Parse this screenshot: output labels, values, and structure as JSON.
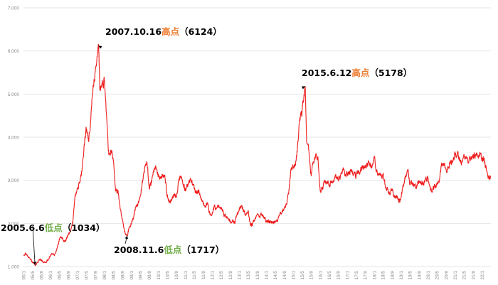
{
  "chart_data": {
    "type": "line",
    "title": "",
    "xlabel": "",
    "ylabel": "",
    "ylim": [
      1000,
      7000
    ],
    "yticks": [
      "1,000",
      "2,000",
      "3,000",
      "4,000",
      "5,000",
      "6,000",
      "7,000"
    ],
    "grid": "horizontal",
    "legend": "none",
    "line_color": "#ee1c1c",
    "x_tick_labels": [
      "05/1",
      "05/5",
      "05/9",
      "06/1",
      "06/5",
      "06/9",
      "07/1",
      "07/5",
      "07/9",
      "08/1",
      "08/5",
      "08/9",
      "09/1",
      "09/5",
      "09/9",
      "10/1",
      "10/5",
      "10/9",
      "11/1",
      "11/5",
      "11/9",
      "12/1",
      "12/5",
      "12/9",
      "13/1",
      "13/5",
      "13/9",
      "14/1",
      "14/5",
      "14/9",
      "15/1",
      "15/5",
      "15/9",
      "16/1",
      "16/5",
      "16/9",
      "17/1",
      "17/5",
      "17/9",
      "18/1",
      "18/5",
      "18/9",
      "19/1",
      "19/5",
      "19/9",
      "20/1",
      "20/5",
      "20/9",
      "21/1",
      "21/5",
      "21/9",
      "22/1"
    ],
    "series": [
      {
        "values": [
          [
            "2005-01-01",
            1260
          ],
          [
            "2005-02-01",
            1300
          ],
          [
            "2005-03-01",
            1230
          ],
          [
            "2005-04-01",
            1180
          ],
          [
            "2005-05-01",
            1100
          ],
          [
            "2005-06-06",
            1034
          ],
          [
            "2005-07-01",
            1080
          ],
          [
            "2005-08-01",
            1160
          ],
          [
            "2005-09-01",
            1150
          ],
          [
            "2005-10-01",
            1100
          ],
          [
            "2005-11-01",
            1090
          ],
          [
            "2005-12-01",
            1160
          ],
          [
            "2006-01-01",
            1250
          ],
          [
            "2006-02-01",
            1300
          ],
          [
            "2006-03-01",
            1290
          ],
          [
            "2006-04-01",
            1420
          ],
          [
            "2006-05-01",
            1640
          ],
          [
            "2006-06-01",
            1660
          ],
          [
            "2006-07-01",
            1580
          ],
          [
            "2006-08-01",
            1620
          ],
          [
            "2006-09-01",
            1750
          ],
          [
            "2006-10-01",
            1850
          ],
          [
            "2006-11-01",
            2050
          ],
          [
            "2006-12-01",
            2650
          ],
          [
            "2007-01-01",
            2800
          ],
          [
            "2007-02-01",
            2950
          ],
          [
            "2007-03-01",
            3200
          ],
          [
            "2007-04-01",
            3800
          ],
          [
            "2007-05-01",
            4200
          ],
          [
            "2007-06-01",
            3900
          ],
          [
            "2007-07-01",
            4400
          ],
          [
            "2007-08-01",
            5200
          ],
          [
            "2007-09-01",
            5550
          ],
          [
            "2007-10-16",
            6124
          ],
          [
            "2007-11-01",
            5100
          ],
          [
            "2007-12-01",
            5260
          ],
          [
            "2008-01-01",
            5300
          ],
          [
            "2008-02-01",
            4450
          ],
          [
            "2008-03-01",
            3600
          ],
          [
            "2008-04-01",
            3700
          ],
          [
            "2008-05-01",
            3450
          ],
          [
            "2008-06-01",
            2750
          ],
          [
            "2008-07-01",
            2780
          ],
          [
            "2008-08-01",
            2350
          ],
          [
            "2008-09-01",
            2100
          ],
          [
            "2008-10-01",
            1800
          ],
          [
            "2008-11-06",
            1717
          ],
          [
            "2008-12-01",
            1900
          ],
          [
            "2009-01-01",
            1990
          ],
          [
            "2009-02-01",
            2150
          ],
          [
            "2009-03-01",
            2380
          ],
          [
            "2009-04-01",
            2450
          ],
          [
            "2009-05-01",
            2640
          ],
          [
            "2009-06-01",
            2950
          ],
          [
            "2009-07-01",
            3300
          ],
          [
            "2009-08-01",
            3400
          ],
          [
            "2009-09-01",
            2800
          ],
          [
            "2009-10-01",
            2950
          ],
          [
            "2009-11-01",
            3200
          ],
          [
            "2009-12-01",
            3280
          ],
          [
            "2010-01-01",
            3100
          ],
          [
            "2010-02-01",
            3050
          ],
          [
            "2010-03-01",
            3100
          ],
          [
            "2010-04-01",
            3050
          ],
          [
            "2010-05-01",
            2650
          ],
          [
            "2010-06-01",
            2500
          ],
          [
            "2010-07-01",
            2550
          ],
          [
            "2010-08-01",
            2650
          ],
          [
            "2010-09-01",
            2600
          ],
          [
            "2010-10-01",
            2950
          ],
          [
            "2010-11-01",
            3100
          ],
          [
            "2010-12-01",
            2900
          ],
          [
            "2011-01-01",
            2800
          ],
          [
            "2011-02-01",
            2850
          ],
          [
            "2011-03-01",
            2950
          ],
          [
            "2011-04-01",
            3000
          ],
          [
            "2011-05-01",
            2800
          ],
          [
            "2011-06-01",
            2700
          ],
          [
            "2011-07-01",
            2780
          ],
          [
            "2011-08-01",
            2600
          ],
          [
            "2011-09-01",
            2450
          ],
          [
            "2011-10-01",
            2400
          ],
          [
            "2011-11-01",
            2450
          ],
          [
            "2011-12-01",
            2200
          ],
          [
            "2012-01-01",
            2250
          ],
          [
            "2012-02-01",
            2400
          ],
          [
            "2012-03-01",
            2350
          ],
          [
            "2012-04-01",
            2400
          ],
          [
            "2012-05-01",
            2350
          ],
          [
            "2012-06-01",
            2250
          ],
          [
            "2012-07-01",
            2150
          ],
          [
            "2012-08-01",
            2100
          ],
          [
            "2012-09-01",
            2050
          ],
          [
            "2012-10-01",
            2080
          ],
          [
            "2012-11-01",
            2000
          ],
          [
            "2012-12-01",
            2200
          ],
          [
            "2013-01-01",
            2350
          ],
          [
            "2013-02-01",
            2420
          ],
          [
            "2013-03-01",
            2300
          ],
          [
            "2013-04-01",
            2200
          ],
          [
            "2013-05-01",
            2300
          ],
          [
            "2013-06-01",
            1950
          ],
          [
            "2013-07-01",
            2000
          ],
          [
            "2013-08-01",
            2100
          ],
          [
            "2013-09-01",
            2200
          ],
          [
            "2013-10-01",
            2150
          ],
          [
            "2013-11-01",
            2200
          ],
          [
            "2013-12-01",
            2150
          ],
          [
            "2014-01-01",
            2050
          ],
          [
            "2014-02-01",
            2050
          ],
          [
            "2014-03-01",
            2040
          ],
          [
            "2014-04-01",
            2030
          ],
          [
            "2014-05-01",
            2030
          ],
          [
            "2014-06-01",
            2050
          ],
          [
            "2014-07-01",
            2200
          ],
          [
            "2014-08-01",
            2250
          ],
          [
            "2014-09-01",
            2350
          ],
          [
            "2014-10-01",
            2450
          ],
          [
            "2014-11-01",
            2700
          ],
          [
            "2014-12-01",
            3250
          ],
          [
            "2015-01-01",
            3300
          ],
          [
            "2015-02-01",
            3350
          ],
          [
            "2015-03-01",
            3800
          ],
          [
            "2015-04-01",
            4450
          ],
          [
            "2015-05-01",
            4600
          ],
          [
            "2015-06-12",
            5178
          ],
          [
            "2015-07-01",
            3900
          ],
          [
            "2015-08-01",
            3700
          ],
          [
            "2015-09-01",
            3100
          ],
          [
            "2015-10-01",
            3400
          ],
          [
            "2015-11-01",
            3600
          ],
          [
            "2015-12-01",
            3550
          ],
          [
            "2016-01-01",
            2750
          ],
          [
            "2016-02-01",
            2800
          ],
          [
            "2016-03-01",
            3000
          ],
          [
            "2016-04-01",
            2950
          ],
          [
            "2016-05-01",
            2900
          ],
          [
            "2016-06-01",
            2950
          ],
          [
            "2016-07-01",
            3000
          ],
          [
            "2016-08-01",
            3100
          ],
          [
            "2016-09-01",
            3000
          ],
          [
            "2016-10-01",
            3100
          ],
          [
            "2016-11-01",
            3250
          ],
          [
            "2016-12-01",
            3100
          ],
          [
            "2017-01-01",
            3150
          ],
          [
            "2017-02-01",
            3200
          ],
          [
            "2017-03-01",
            3250
          ],
          [
            "2017-04-01",
            3150
          ],
          [
            "2017-05-01",
            3100
          ],
          [
            "2017-06-01",
            3200
          ],
          [
            "2017-07-01",
            3250
          ],
          [
            "2017-08-01",
            3300
          ],
          [
            "2017-09-01",
            3350
          ],
          [
            "2017-10-01",
            3400
          ],
          [
            "2017-11-01",
            3350
          ],
          [
            "2017-12-01",
            3300
          ],
          [
            "2018-01-01",
            3550
          ],
          [
            "2018-02-01",
            3200
          ],
          [
            "2018-03-01",
            3150
          ],
          [
            "2018-04-01",
            3100
          ],
          [
            "2018-05-01",
            3150
          ],
          [
            "2018-06-01",
            2850
          ],
          [
            "2018-07-01",
            2800
          ],
          [
            "2018-08-01",
            2700
          ],
          [
            "2018-09-01",
            2800
          ],
          [
            "2018-10-01",
            2600
          ],
          [
            "2018-11-01",
            2650
          ],
          [
            "2018-12-01",
            2500
          ],
          [
            "2019-01-01",
            2600
          ],
          [
            "2019-02-01",
            2900
          ],
          [
            "2019-03-01",
            3100
          ],
          [
            "2019-04-01",
            3250
          ],
          [
            "2019-05-01",
            2900
          ],
          [
            "2019-06-01",
            2950
          ],
          [
            "2019-07-01",
            2900
          ],
          [
            "2019-08-01",
            2850
          ],
          [
            "2019-09-01",
            2950
          ],
          [
            "2019-10-01",
            2950
          ],
          [
            "2019-11-01",
            2900
          ],
          [
            "2019-12-01",
            3050
          ],
          [
            "2020-01-01",
            3050
          ],
          [
            "2020-02-01",
            2800
          ],
          [
            "2020-03-01",
            2750
          ],
          [
            "2020-04-01",
            2850
          ],
          [
            "2020-05-01",
            2900
          ],
          [
            "2020-06-01",
            3000
          ],
          [
            "2020-07-01",
            3400
          ],
          [
            "2020-08-01",
            3400
          ],
          [
            "2020-09-01",
            3250
          ],
          [
            "2020-10-01",
            3300
          ],
          [
            "2020-11-01",
            3400
          ],
          [
            "2020-12-01",
            3450
          ],
          [
            "2021-01-01",
            3600
          ],
          [
            "2021-02-01",
            3650
          ],
          [
            "2021-03-01",
            3450
          ],
          [
            "2021-04-01",
            3450
          ],
          [
            "2021-05-01",
            3600
          ],
          [
            "2021-06-01",
            3550
          ],
          [
            "2021-07-01",
            3400
          ],
          [
            "2021-08-01",
            3500
          ],
          [
            "2021-09-01",
            3600
          ],
          [
            "2021-10-01",
            3550
          ],
          [
            "2021-11-01",
            3550
          ],
          [
            "2021-12-01",
            3650
          ],
          [
            "2022-01-01",
            3500
          ],
          [
            "2022-02-01",
            3450
          ],
          [
            "2022-03-01",
            3250
          ],
          [
            "2022-04-01",
            3050
          ],
          [
            "2022-04-26",
            3100
          ]
        ]
      }
    ],
    "annotations": [
      {
        "date_text": "2005.6.6",
        "kind": "低点",
        "value_text": "（1034）",
        "x": "2005-06-06",
        "y": 1034,
        "kind_color": "#70ad47"
      },
      {
        "date_text": "2007.10.16",
        "kind": "高点",
        "value_text": "（6124）",
        "x": "2007-10-16",
        "y": 6124,
        "kind_color": "#ed7d31"
      },
      {
        "date_text": "2008.11.6",
        "kind": "低点",
        "value_text": "（1717）",
        "x": "2008-11-06",
        "y": 1717,
        "kind_color": "#70ad47"
      },
      {
        "date_text": "2015.6.12",
        "kind": "高点",
        "value_text": "（5178）",
        "x": "2015-06-12",
        "y": 5178,
        "kind_color": "#ed7d31"
      }
    ]
  }
}
